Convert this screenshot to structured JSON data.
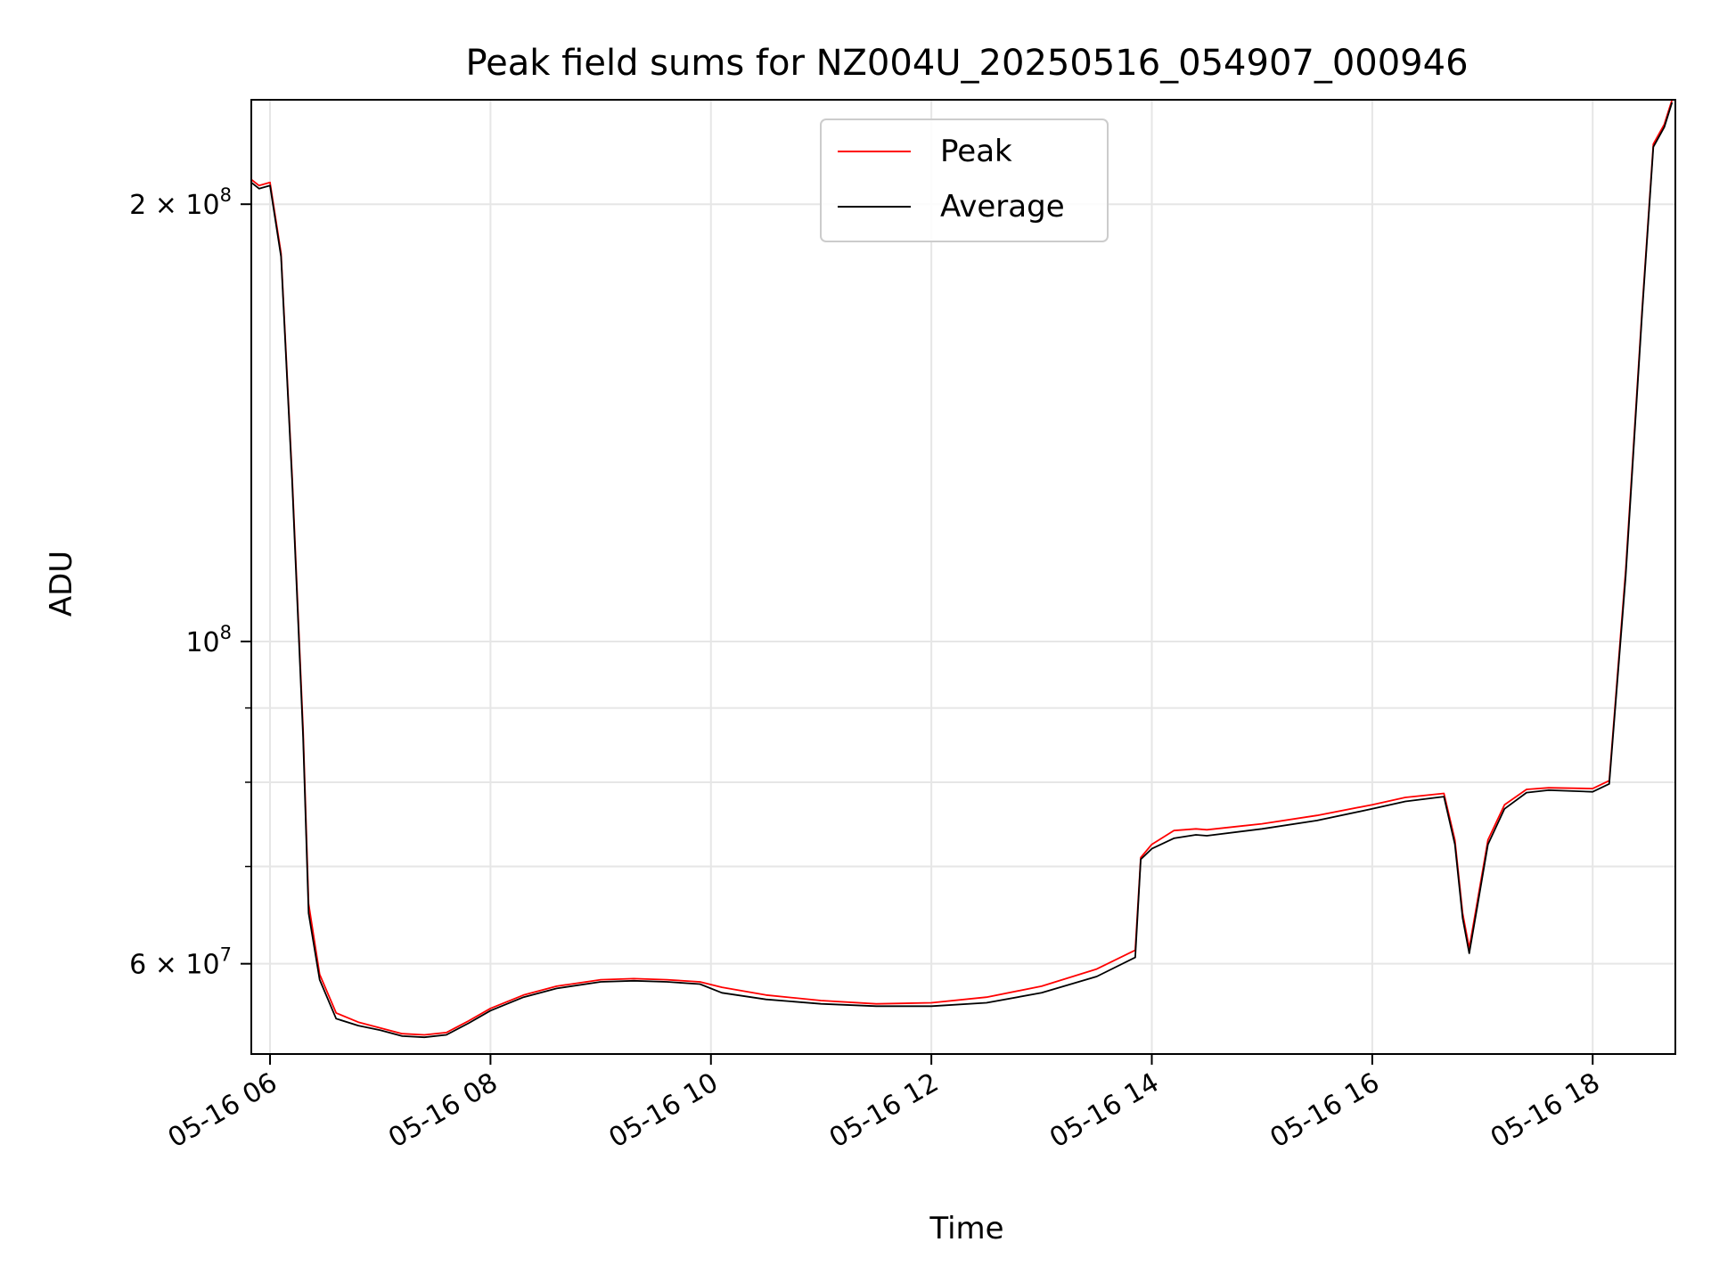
{
  "chart_data": {
    "type": "line",
    "title": "Peak field sums for NZ004U_20250516_054907_000946",
    "xlabel": "Time",
    "ylabel": "ADU",
    "yscale": "log",
    "xlim_hours": [
      5.83,
      18.75
    ],
    "ylim": [
      52000000,
      236000000
    ],
    "grid": true,
    "legend_placement": "top-center",
    "x_ticks": [
      {
        "value": 6,
        "label": "05-16 06"
      },
      {
        "value": 8,
        "label": "05-16 08"
      },
      {
        "value": 10,
        "label": "05-16 10"
      },
      {
        "value": 12,
        "label": "05-16 12"
      },
      {
        "value": 14,
        "label": "05-16 14"
      },
      {
        "value": 16,
        "label": "05-16 16"
      },
      {
        "value": 18,
        "label": "05-16 18"
      }
    ],
    "y_major_ticks": [
      {
        "value": 60000000,
        "base": "6 × 10",
        "exp": "7"
      },
      {
        "value": 100000000,
        "base": "10",
        "exp": "8"
      },
      {
        "value": 200000000,
        "base": "2 × 10",
        "exp": "8"
      }
    ],
    "y_minor_ticks": [
      70000000,
      80000000,
      90000000
    ],
    "series": [
      {
        "name": "Peak",
        "color": "#ff0000",
        "x": [
          5.83,
          5.9,
          6.0,
          6.1,
          6.2,
          6.3,
          6.35,
          6.45,
          6.6,
          6.8,
          7.0,
          7.2,
          7.4,
          7.6,
          7.8,
          8.0,
          8.3,
          8.6,
          9.0,
          9.3,
          9.6,
          9.9,
          10.1,
          10.5,
          11.0,
          11.5,
          12.0,
          12.5,
          13.0,
          13.5,
          13.85,
          13.9,
          14.0,
          14.2,
          14.4,
          14.5,
          15.0,
          15.5,
          16.0,
          16.3,
          16.65,
          16.75,
          16.82,
          16.88,
          16.95,
          17.05,
          17.2,
          17.4,
          17.6,
          18.0,
          18.15,
          18.3,
          18.45,
          18.55,
          18.65,
          18.72
        ],
        "y": [
          208000000,
          206000000,
          207000000,
          185000000,
          130000000,
          87000000,
          66000000,
          59000000,
          55500000,
          54700000,
          54200000,
          53700000,
          53600000,
          53800000,
          54800000,
          55900000,
          57100000,
          57900000,
          58500000,
          58600000,
          58500000,
          58300000,
          57800000,
          57100000,
          56600000,
          56300000,
          56400000,
          56900000,
          57900000,
          59500000,
          61300000,
          71000000,
          72500000,
          74100000,
          74300000,
          74200000,
          74900000,
          75900000,
          77200000,
          78100000,
          78600000,
          73000000,
          65000000,
          61500000,
          66000000,
          73000000,
          77200000,
          79100000,
          79300000,
          79200000,
          80200000,
          112000000,
          170000000,
          220000000,
          227000000,
          236000000
        ]
      },
      {
        "name": "Average",
        "color": "#000000",
        "x": [
          5.83,
          5.9,
          6.0,
          6.1,
          6.2,
          6.3,
          6.35,
          6.45,
          6.6,
          6.8,
          7.0,
          7.2,
          7.4,
          7.6,
          7.8,
          8.0,
          8.3,
          8.6,
          9.0,
          9.3,
          9.6,
          9.9,
          10.1,
          10.5,
          11.0,
          11.5,
          12.0,
          12.5,
          13.0,
          13.5,
          13.85,
          13.9,
          14.0,
          14.2,
          14.4,
          14.5,
          15.0,
          15.5,
          16.0,
          16.3,
          16.65,
          16.75,
          16.82,
          16.88,
          16.95,
          17.05,
          17.2,
          17.4,
          17.6,
          18.0,
          18.15,
          18.3,
          18.45,
          18.55,
          18.65,
          18.72
        ],
        "y": [
          207000000,
          205000000,
          206000000,
          184000000,
          129000000,
          86000000,
          65000000,
          58500000,
          55000000,
          54400000,
          54000000,
          53500000,
          53400000,
          53600000,
          54600000,
          55700000,
          56900000,
          57700000,
          58300000,
          58400000,
          58300000,
          58100000,
          57300000,
          56700000,
          56300000,
          56100000,
          56100000,
          56400000,
          57300000,
          58800000,
          60600000,
          70800000,
          72000000,
          73200000,
          73600000,
          73500000,
          74300000,
          75300000,
          76700000,
          77600000,
          78200000,
          72500000,
          64500000,
          61000000,
          65500000,
          72500000,
          76700000,
          78700000,
          79000000,
          78800000,
          79800000,
          111000000,
          169000000,
          219000000,
          226000000,
          235000000
        ]
      }
    ]
  }
}
